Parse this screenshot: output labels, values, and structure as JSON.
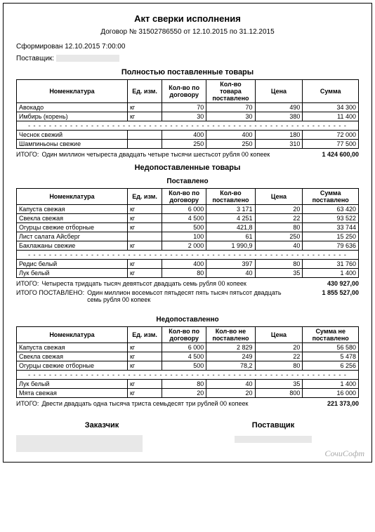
{
  "doc": {
    "title": "Акт сверки исполнения",
    "contract": "Договор № 31502786550 от  12.10.2015 по  31.12.2015",
    "generated": "Сформирован 12.10.2015 7:00:00",
    "supplierLabel": "Поставщик:",
    "watermark": "СочиСофт"
  },
  "section1": {
    "title": "Полностью поставленные товары",
    "headers": {
      "name": "Номенклатура",
      "unit": "Ед. изм.",
      "qtyContract": "Кол-во по договору",
      "qtyDelivered": "Кол-во товара поставлено",
      "price": "Цена",
      "sum": "Сумма"
    },
    "rowsA": [
      {
        "name": "Авокадо",
        "unit": "кг",
        "q1": "70",
        "q2": "70",
        "price": "490",
        "sum": "34 300"
      },
      {
        "name": "Имбирь (корень)",
        "unit": "кг",
        "q1": "30",
        "q2": "30",
        "price": "380",
        "sum": "11 400"
      }
    ],
    "rowsB": [
      {
        "name": "Чеснок свежий",
        "unit": "",
        "q1": "400",
        "q2": "400",
        "price": "180",
        "sum": "72 000"
      },
      {
        "name": "Шампиньоны свежие",
        "unit": "",
        "q1": "250",
        "q2": "250",
        "price": "310",
        "sum": "77 500"
      }
    ],
    "total": {
      "label": "ИТОГО:",
      "words": "Один миллион четыреста двадцать четыре тысячи шестьсот рубля 00 копеек",
      "amount": "1 424 600,00"
    }
  },
  "section2": {
    "title": "Недопоставленные товары",
    "subtitle": "Поставлено",
    "headers": {
      "name": "Номенклатура",
      "unit": "Ед. изм.",
      "qtyContract": "Кол-во по договору",
      "qtyDelivered": "Кол-во поставлено",
      "price": "Цена",
      "sum": "Сумма поставлено"
    },
    "rowsA": [
      {
        "name": "Капуста свежая",
        "unit": "кг",
        "q1": "6 000",
        "q2": "3 171",
        "price": "20",
        "sum": "63 420"
      },
      {
        "name": "Свекла свежая",
        "unit": "кг",
        "q1": "4 500",
        "q2": "4 251",
        "price": "22",
        "sum": "93 522"
      },
      {
        "name": "Огурцы свежие отборные",
        "unit": "кг",
        "q1": "500",
        "q2": "421,8",
        "price": "80",
        "sum": "33 744"
      },
      {
        "name": "Лист салата Айсберг",
        "unit": "",
        "q1": "100",
        "q2": "61",
        "price": "250",
        "sum": "15 250"
      },
      {
        "name": "Баклажаны свежие",
        "unit": "кг",
        "q1": "2 000",
        "q2": "1 990,9",
        "price": "40",
        "sum": "79 636"
      }
    ],
    "rowsB": [
      {
        "name": "Редис белый",
        "unit": "кг",
        "q1": "400",
        "q2": "397",
        "price": "80",
        "sum": "31 760"
      },
      {
        "name": "Лук белый",
        "unit": "кг",
        "q1": "80",
        "q2": "40",
        "price": "35",
        "sum": "1 400"
      }
    ],
    "total1": {
      "label": "ИТОГО:",
      "words": "Четыреста тридцать тысяч девятьсот двадцать семь рубля 00 копеек",
      "amount": "430 927,00"
    },
    "total2": {
      "label": "ИТОГО ПОСТАВЛЕНО:",
      "words": "Один миллион восемьсот пятьдесят пять тысяч пятьсот двадцать семь рубля 00 копеек",
      "amount": "1 855 527,00"
    }
  },
  "section3": {
    "subtitle": "Недопоставленно",
    "headers": {
      "name": "Номенклатура",
      "unit": "Ед. изм.",
      "qtyContract": "Кол-во по договору",
      "qtyNot": "Кол-во не поставлено",
      "price": "Цена",
      "sum": "Сумма не поставлено"
    },
    "rowsA": [
      {
        "name": "Капуста свежая",
        "unit": "кг",
        "q1": "6 000",
        "q2": "2 829",
        "price": "20",
        "sum": "56 580"
      },
      {
        "name": "Свекла свежая",
        "unit": "кг",
        "q1": "4 500",
        "q2": "249",
        "price": "22",
        "sum": "5 478"
      },
      {
        "name": "Огурцы свежие отборные",
        "unit": "кг",
        "q1": "500",
        "q2": "78,2",
        "price": "80",
        "sum": "6 256"
      }
    ],
    "rowsB": [
      {
        "name": "Лук белый",
        "unit": "кг",
        "q1": "80",
        "q2": "40",
        "price": "35",
        "sum": "1 400"
      },
      {
        "name": "Мята свежая",
        "unit": "кг",
        "q1": "20",
        "q2": "20",
        "price": "800",
        "sum": "16 000"
      }
    ],
    "total": {
      "label": "ИТОГО:",
      "words": "Двести двадцать одна тысяча триста семьдесят три рублей 00 копеек",
      "amount": "221 373,00"
    }
  },
  "signatures": {
    "customer": "Заказчик",
    "supplier": "Поставщик"
  }
}
